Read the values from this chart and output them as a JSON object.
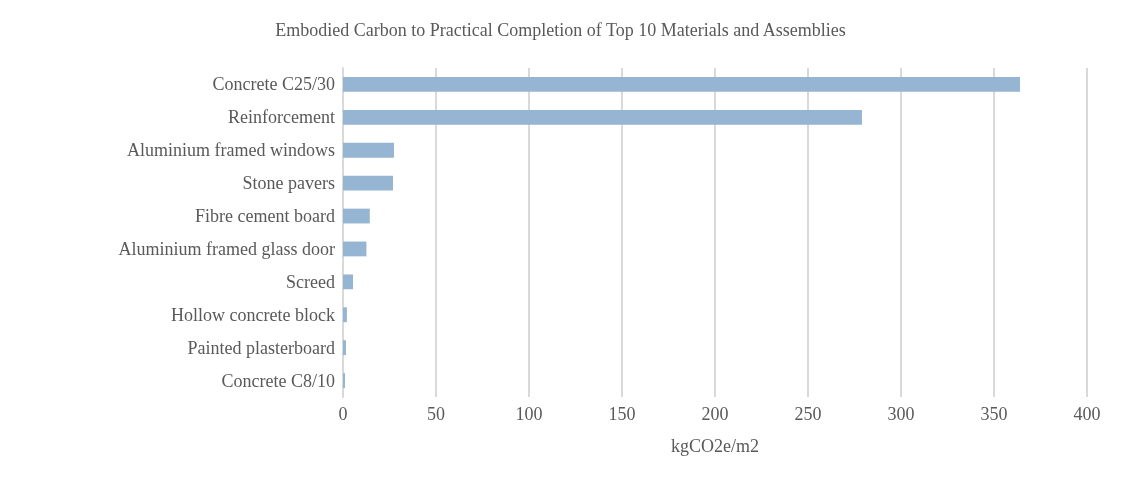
{
  "chart_data": {
    "type": "bar",
    "orientation": "horizontal",
    "title": "Embodied Carbon to Practical Completion of Top 10 Materials and Assemblies",
    "xlabel": "kgCO2e/m2",
    "categories": [
      "Concrete C25/30",
      "Reinforcement",
      "Aluminium framed windows",
      "Stone pavers",
      "Fibre cement board",
      "Aluminium framed glass door",
      "Screed",
      "Hollow concrete block",
      "Painted plasterboard",
      "Concrete C8/10"
    ],
    "values": [
      364,
      279,
      27.4,
      26.9,
      14.4,
      12.6,
      5.4,
      2.1,
      1.6,
      1.1
    ],
    "color": "#95b5d3",
    "xlim": [
      0,
      400
    ],
    "xticks": [
      0,
      50,
      100,
      150,
      200,
      250,
      300,
      350,
      400
    ],
    "grid": "x"
  }
}
